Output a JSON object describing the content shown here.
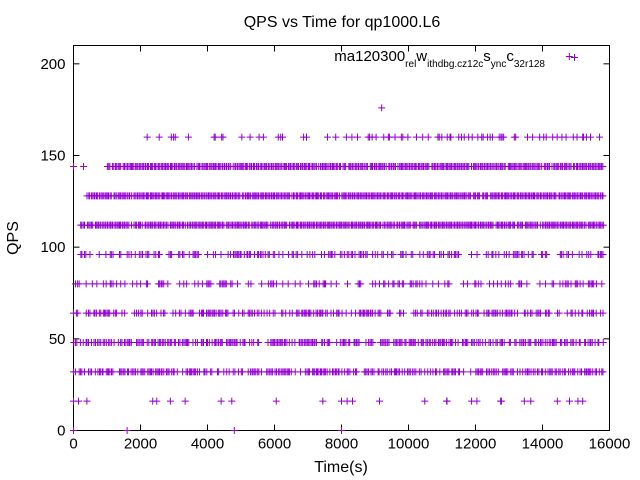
{
  "chart_data": {
    "type": "scatter",
    "title": "QPS vs Time for qp1000.L6",
    "xlabel": "Time(s)",
    "ylabel": "QPS",
    "xlim": [
      0,
      16000
    ],
    "ylim": [
      0,
      210
    ],
    "grid": false,
    "legend_position": "top-right",
    "x_ticks": [
      0,
      2000,
      4000,
      6000,
      8000,
      10000,
      12000,
      14000,
      16000
    ],
    "y_ticks": [
      0,
      50,
      100,
      150,
      200
    ],
    "series": [
      {
        "name": "ma120300_rel_withdbg.cz12c_sync_c32r128",
        "legend_parts": [
          {
            "text": "ma120300",
            "sub": false
          },
          {
            "text": "rel",
            "sub": true
          },
          {
            "text": "w",
            "sub": false
          },
          {
            "text": "ithdbg.cz12c",
            "sub": true
          },
          {
            "text": "s",
            "sub": false
          },
          {
            "text": "ync",
            "sub": true
          },
          {
            "text": "c",
            "sub": false
          },
          {
            "text": "32r128",
            "sub": true
          }
        ],
        "color": "#9400d3",
        "marker": "plus",
        "x_range": [
          0,
          15800
        ],
        "bands": [
          {
            "y": 16,
            "density": 0.05,
            "start": 0
          },
          {
            "y": 32,
            "density": 0.65,
            "start": 0
          },
          {
            "y": 48,
            "density": 0.7,
            "start": 0
          },
          {
            "y": 64,
            "density": 0.55,
            "start": 0
          },
          {
            "y": 80,
            "density": 0.35,
            "start": 0
          },
          {
            "y": 96,
            "density": 0.45,
            "start": 200
          },
          {
            "y": 112,
            "density": 0.95,
            "start": 200
          },
          {
            "y": 128,
            "density": 0.97,
            "start": 400
          },
          {
            "y": 144,
            "density": 0.98,
            "start": 1000
          },
          {
            "y": 160,
            "density": 0.22,
            "start": 2100
          }
        ],
        "outliers": [
          {
            "x": 9200,
            "y": 176
          },
          {
            "x": 14800,
            "y": 204
          },
          {
            "x": 0,
            "y": 0
          },
          {
            "x": 1600,
            "y": 0
          },
          {
            "x": 4800,
            "y": 0
          },
          {
            "x": 8000,
            "y": 0
          },
          {
            "x": 0,
            "y": 16
          },
          {
            "x": 150,
            "y": 16
          },
          {
            "x": 400,
            "y": 16
          },
          {
            "x": 8000,
            "y": 16
          },
          {
            "x": 11150,
            "y": 16
          },
          {
            "x": 12750,
            "y": 16
          },
          {
            "x": 13650,
            "y": 16
          },
          {
            "x": 15200,
            "y": 16
          },
          {
            "x": 0,
            "y": 144
          },
          {
            "x": 300,
            "y": 144
          }
        ]
      }
    ]
  }
}
